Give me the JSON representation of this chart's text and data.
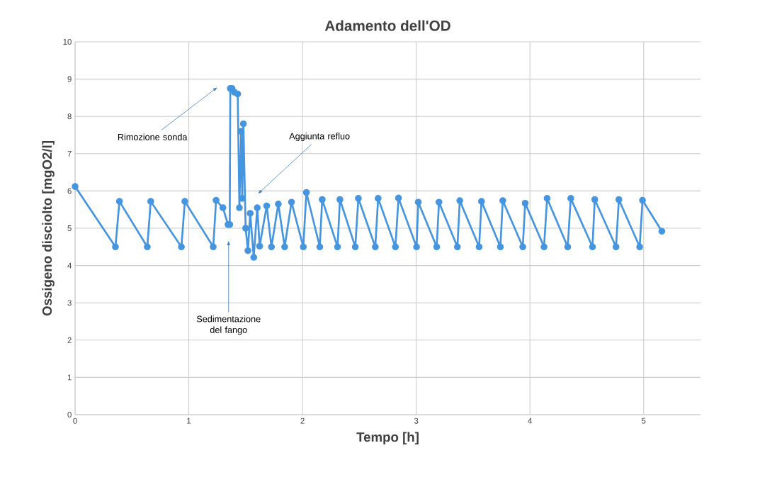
{
  "chart_data": {
    "type": "line",
    "title": "Adamento dell'OD",
    "xlabel": "Tempo [h]",
    "ylabel": "Ossigeno disciolto [mgO2/l]",
    "xlim": [
      0,
      5.5
    ],
    "xticks": [
      0,
      1,
      2,
      3,
      4,
      5
    ],
    "ylim": [
      0,
      10
    ],
    "yticks": [
      0,
      1,
      2,
      3,
      4,
      5,
      6,
      7,
      8,
      9,
      10
    ],
    "grid": true,
    "marker": "circle",
    "line_style": "solid",
    "series": [
      {
        "color": "#4595e0",
        "x": [
          0,
          0.355,
          0.39,
          0.635,
          0.665,
          0.935,
          0.965,
          1.215,
          1.24,
          1.3,
          1.345,
          1.36,
          1.365,
          1.38,
          1.4,
          1.43,
          1.445,
          1.46,
          1.47,
          1.48,
          1.5,
          1.52,
          1.54,
          1.571,
          1.602,
          1.623,
          1.685,
          1.727,
          1.787,
          1.843,
          1.903,
          2.007,
          2.034,
          2.152,
          2.173,
          2.308,
          2.329,
          2.464,
          2.491,
          2.64,
          2.665,
          2.817,
          2.844,
          3.003,
          3.018,
          3.18,
          3.2,
          3.362,
          3.383,
          3.553,
          3.574,
          3.74,
          3.761,
          3.937,
          3.958,
          4.124,
          4.151,
          4.332,
          4.359,
          4.55,
          4.57,
          4.757,
          4.782,
          4.965,
          4.99,
          5.16
        ],
        "values": [
          6.12,
          4.5,
          5.72,
          4.5,
          5.72,
          4.5,
          5.72,
          4.5,
          5.75,
          5.55,
          5.1,
          5.1,
          8.75,
          8.75,
          8.65,
          8.6,
          5.55,
          7.6,
          5.8,
          7.8,
          5.0,
          4.4,
          5.4,
          4.22,
          5.55,
          4.52,
          5.6,
          4.5,
          5.65,
          4.5,
          5.7,
          4.5,
          5.96,
          4.5,
          5.77,
          4.5,
          5.77,
          4.5,
          5.8,
          4.5,
          5.8,
          4.5,
          5.81,
          4.5,
          5.7,
          4.5,
          5.7,
          4.5,
          5.74,
          4.5,
          5.72,
          4.5,
          5.74,
          4.5,
          5.67,
          4.5,
          5.8,
          4.5,
          5.8,
          4.5,
          5.77,
          4.5,
          5.77,
          4.5,
          5.75,
          4.92
        ]
      }
    ],
    "annotations": [
      "Rimozione sonda",
      "Aggiunta refluo",
      "Sedimentazione del fango"
    ]
  }
}
